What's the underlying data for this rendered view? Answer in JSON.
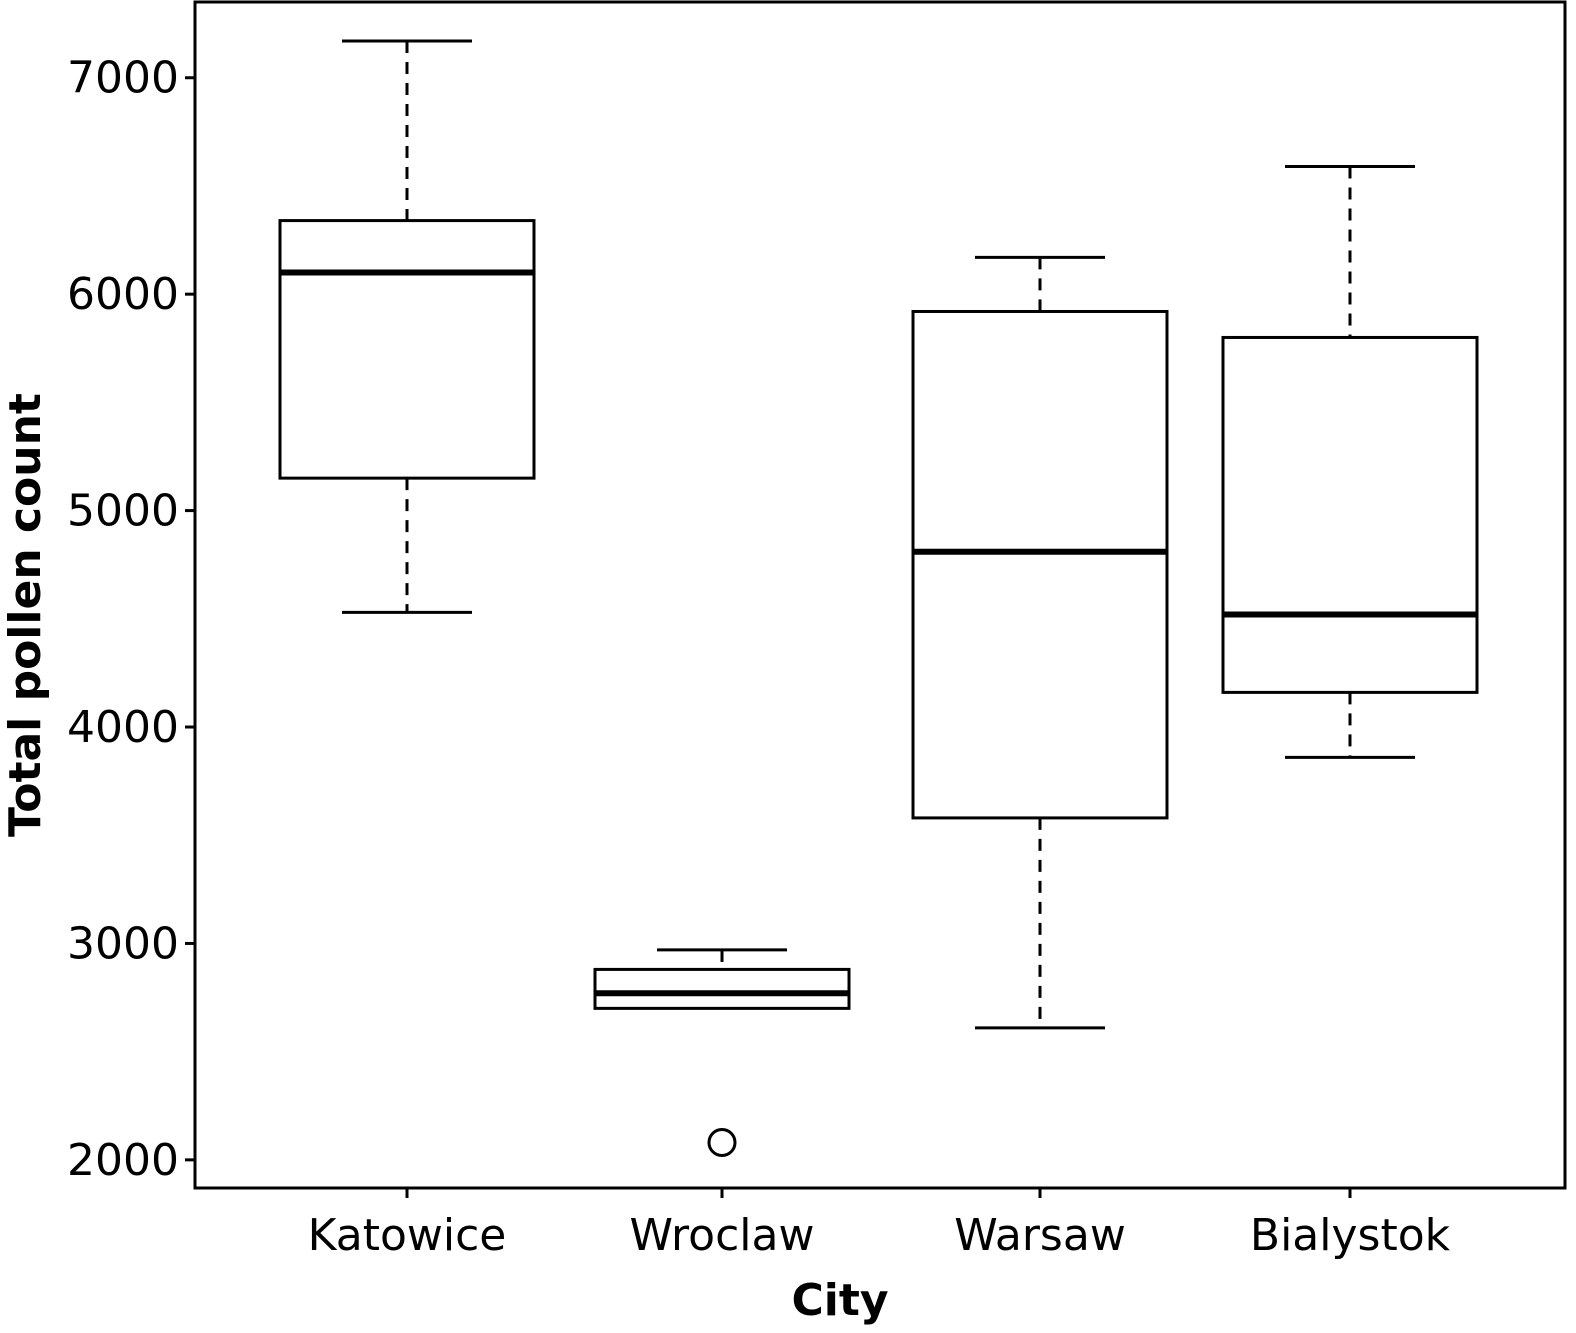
{
  "chart_data": {
    "type": "boxplot",
    "xlabel": "City",
    "ylabel": "Total pollen count",
    "ylim": [
      1870,
      7350
    ],
    "yticks": [
      2000,
      3000,
      4000,
      5000,
      6000,
      7000
    ],
    "categories": [
      "Katowice",
      "Wroclaw",
      "Warsaw",
      "Bialystok"
    ],
    "boxes": [
      {
        "category": "Katowice",
        "whisker_low": 4530,
        "q1": 5150,
        "median": 6100,
        "q3": 6340,
        "whisker_high": 7170,
        "outliers": []
      },
      {
        "category": "Wroclaw",
        "whisker_low": 2700,
        "q1": 2700,
        "median": 2770,
        "q3": 2880,
        "whisker_high": 2970,
        "outliers": [
          2080
        ]
      },
      {
        "category": "Warsaw",
        "whisker_low": 2610,
        "q1": 3580,
        "median": 4810,
        "q3": 5920,
        "whisker_high": 6170,
        "outliers": []
      },
      {
        "category": "Bialystok",
        "whisker_low": 3860,
        "q1": 4160,
        "median": 4520,
        "q3": 5800,
        "whisker_high": 6590,
        "outliers": []
      }
    ],
    "grid": false,
    "legend": "none",
    "colors": {
      "stroke": "#000000",
      "fill": "#ffffff"
    }
  }
}
